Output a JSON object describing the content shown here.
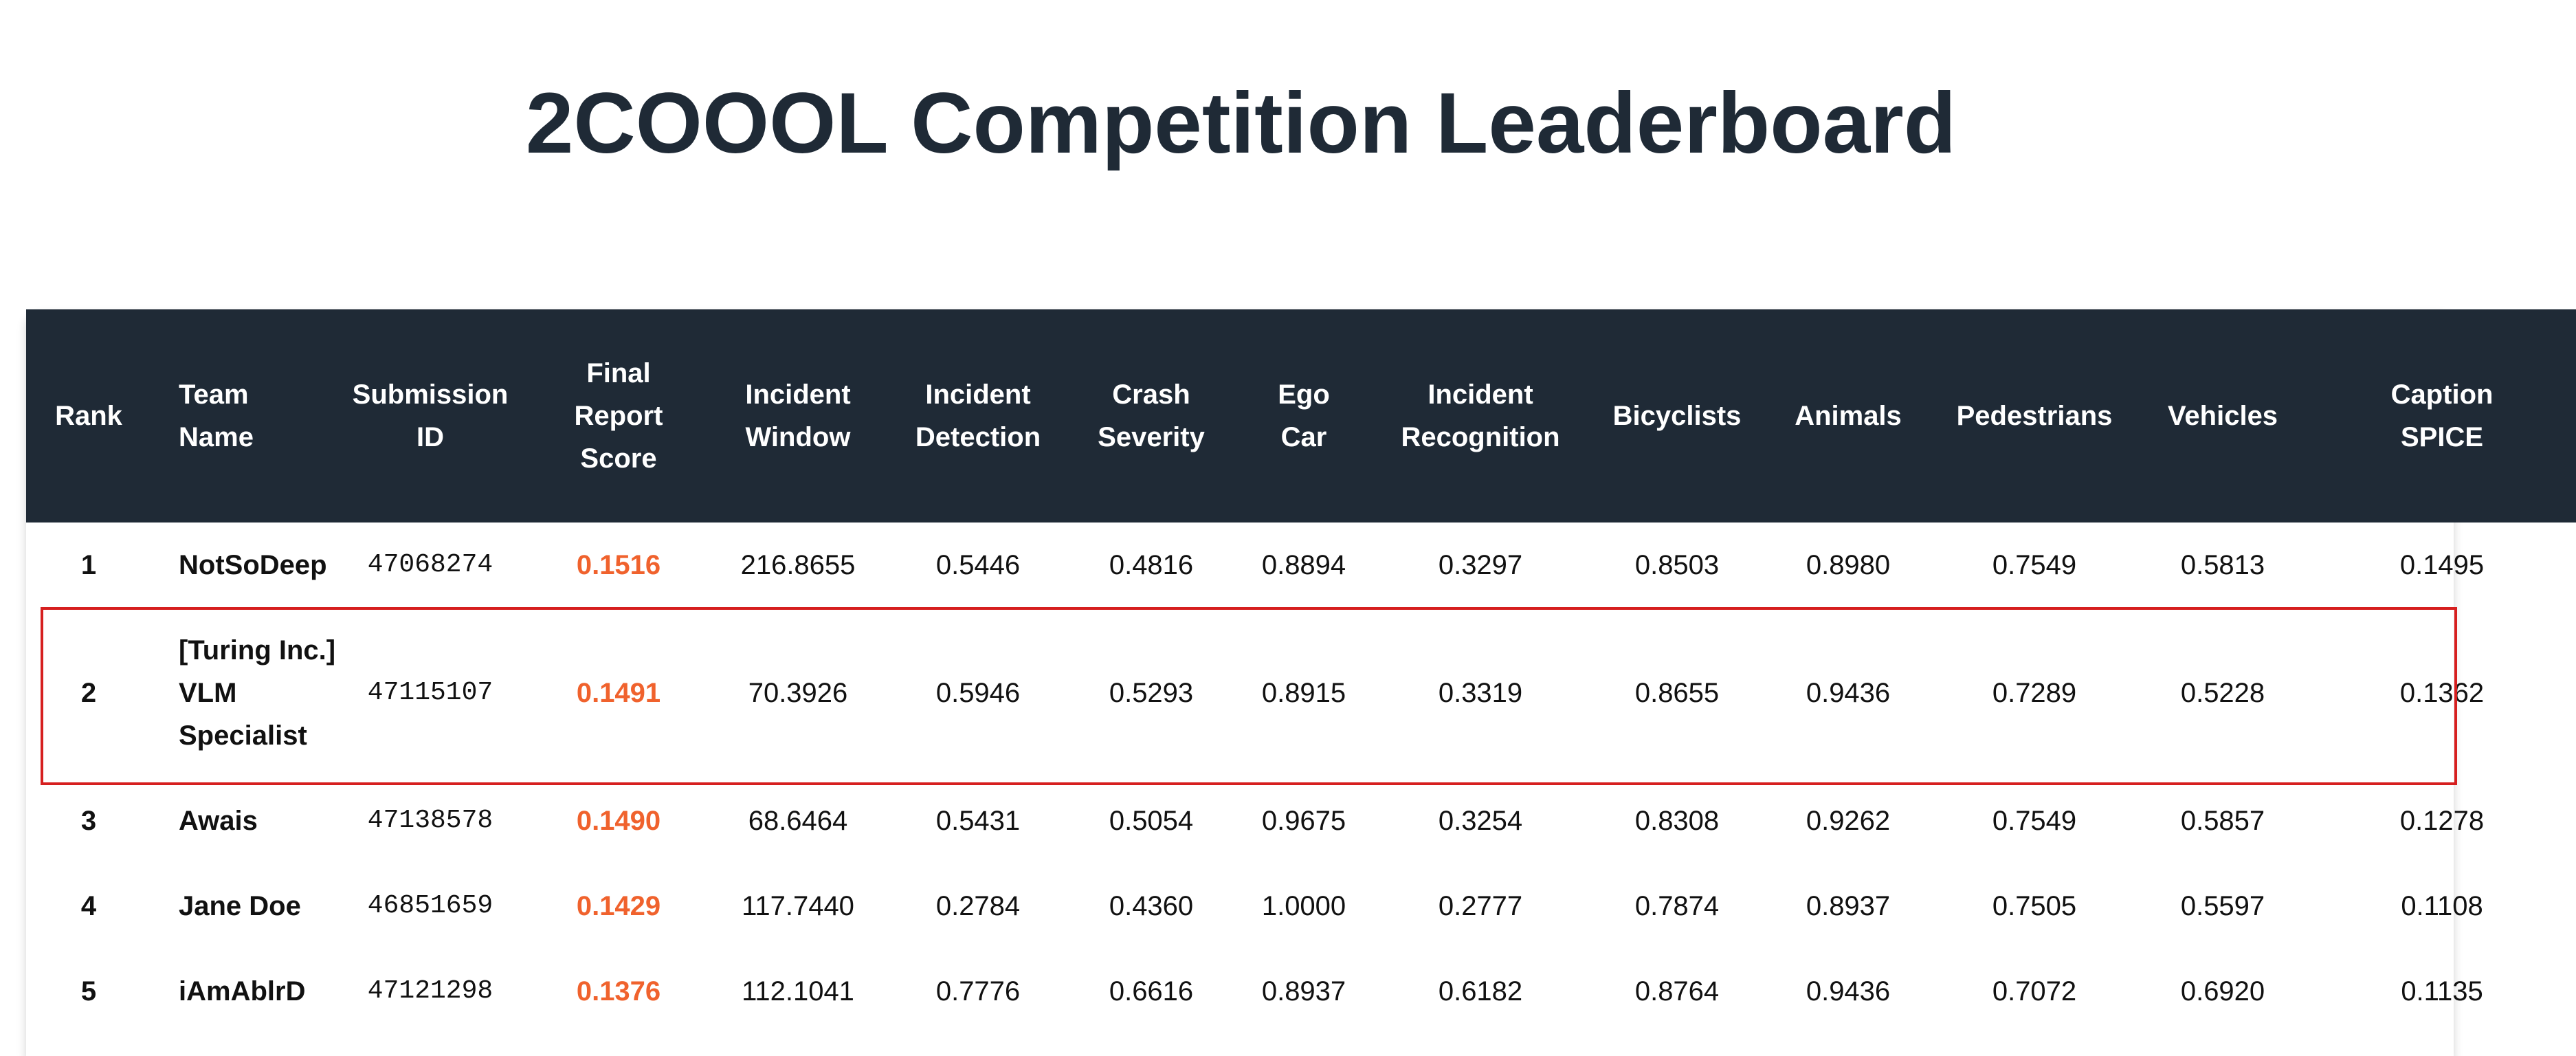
{
  "title": "2COOOL Competition Leaderboard",
  "accent_colors": {
    "header_bg": "#1f2a36",
    "score": "#f0622d",
    "highlight_border": "#d61f1f"
  },
  "columns": [
    {
      "key": "rank",
      "label": "Rank"
    },
    {
      "key": "team",
      "label": "Team Name"
    },
    {
      "key": "submission_id",
      "label": "Submission ID"
    },
    {
      "key": "final_score",
      "label": "Final Report Score"
    },
    {
      "key": "incident_window",
      "label": "Incident Window"
    },
    {
      "key": "incident_detection",
      "label": "Incident Detection"
    },
    {
      "key": "crash_severity",
      "label": "Crash Severity"
    },
    {
      "key": "ego_car",
      "label": "Ego Car"
    },
    {
      "key": "incident_recognition",
      "label": "Incident Recognition"
    },
    {
      "key": "bicyclists",
      "label": "Bicyclists"
    },
    {
      "key": "animals",
      "label": "Animals"
    },
    {
      "key": "pedestrians",
      "label": "Pedestrians"
    },
    {
      "key": "vehicles",
      "label": "Vehicles"
    },
    {
      "key": "caption_spice",
      "label": "Caption SPICE"
    }
  ],
  "rows": [
    {
      "rank": "1",
      "team": "NotSoDeep",
      "submission_id": "47068274",
      "final_score": "0.1516",
      "incident_window": "216.8655",
      "incident_detection": "0.5446",
      "crash_severity": "0.4816",
      "ego_car": "0.8894",
      "incident_recognition": "0.3297",
      "bicyclists": "0.8503",
      "animals": "0.8980",
      "pedestrians": "0.7549",
      "vehicles": "0.5813",
      "caption_spice": "0.1495"
    },
    {
      "rank": "2",
      "team": "[Turing Inc.] VLM Specialist",
      "submission_id": "47115107",
      "final_score": "0.1491",
      "incident_window": "70.3926",
      "incident_detection": "0.5946",
      "crash_severity": "0.5293",
      "ego_car": "0.8915",
      "incident_recognition": "0.3319",
      "bicyclists": "0.8655",
      "animals": "0.9436",
      "pedestrians": "0.7289",
      "vehicles": "0.5228",
      "caption_spice": "0.1362",
      "highlighted": true
    },
    {
      "rank": "3",
      "team": "Awais",
      "submission_id": "47138578",
      "final_score": "0.1490",
      "incident_window": "68.6464",
      "incident_detection": "0.5431",
      "crash_severity": "0.5054",
      "ego_car": "0.9675",
      "incident_recognition": "0.3254",
      "bicyclists": "0.8308",
      "animals": "0.9262",
      "pedestrians": "0.7549",
      "vehicles": "0.5857",
      "caption_spice": "0.1278"
    },
    {
      "rank": "4",
      "team": "Jane Doe",
      "submission_id": "46851659",
      "final_score": "0.1429",
      "incident_window": "117.7440",
      "incident_detection": "0.2784",
      "crash_severity": "0.4360",
      "ego_car": "1.0000",
      "incident_recognition": "0.2777",
      "bicyclists": "0.7874",
      "animals": "0.8937",
      "pedestrians": "0.7505",
      "vehicles": "0.5597",
      "caption_spice": "0.1108"
    },
    {
      "rank": "5",
      "team": "iAmAblrD",
      "submission_id": "47121298",
      "final_score": "0.1376",
      "incident_window": "112.1041",
      "incident_detection": "0.7776",
      "crash_severity": "0.6616",
      "ego_car": "0.8937",
      "incident_recognition": "0.6182",
      "bicyclists": "0.8764",
      "animals": "0.9436",
      "pedestrians": "0.7072",
      "vehicles": "0.6920",
      "caption_spice": "0.1135"
    }
  ]
}
